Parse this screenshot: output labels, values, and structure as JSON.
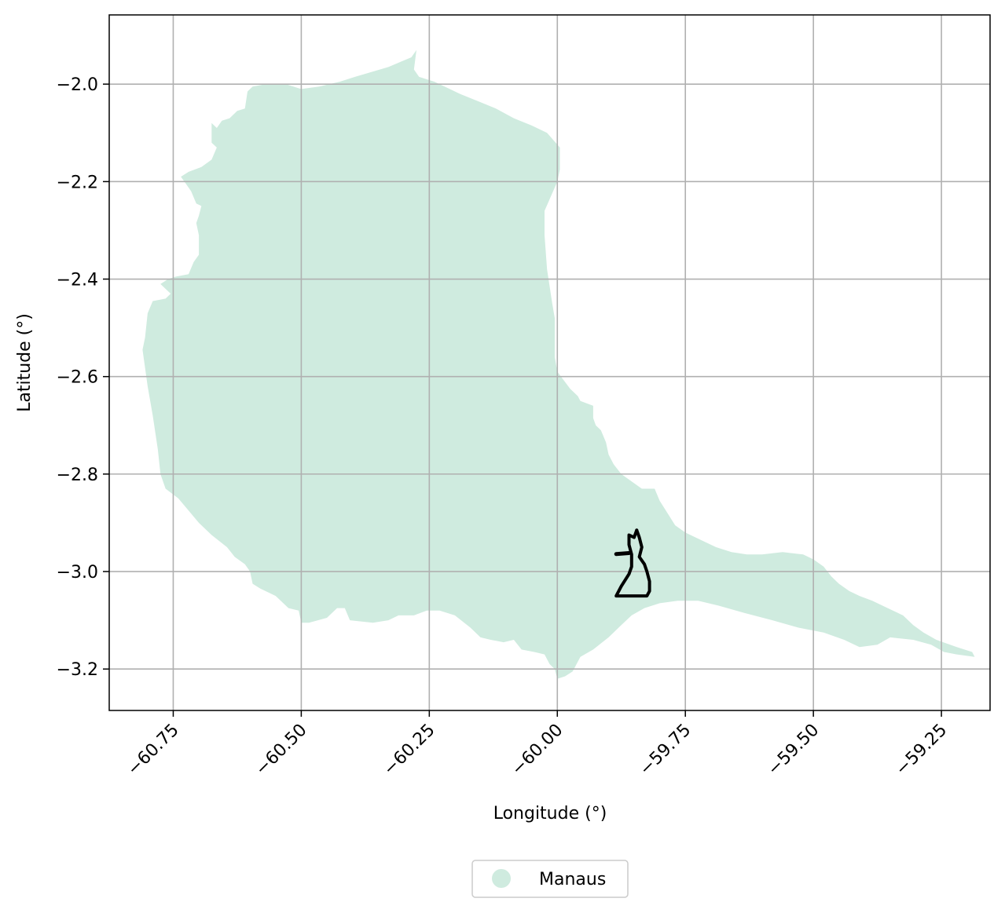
{
  "chart_data": {
    "type": "map",
    "xlabel": "Longitude (°)",
    "ylabel": "Latitude (°)",
    "xlim": [
      -60.875,
      -59.155
    ],
    "ylim": [
      -3.285,
      -1.858
    ],
    "x_ticks": [
      -60.75,
      -60.5,
      -60.25,
      -60.0,
      -59.75,
      -59.5,
      -59.25
    ],
    "x_tick_labels": [
      "−60.75",
      "−60.50",
      "−60.25",
      "−60.00",
      "−59.75",
      "−59.50",
      "−59.25"
    ],
    "y_ticks": [
      -2.0,
      -2.2,
      -2.4,
      -2.6,
      -2.8,
      -3.0,
      -3.2
    ],
    "y_tick_labels": [
      "−2.0",
      "−2.2",
      "−2.4",
      "−2.6",
      "−2.8",
      "−3.0",
      "−3.2"
    ],
    "grid": true,
    "legend": {
      "placement": "bottom-center",
      "entries": [
        {
          "label": "Manaus",
          "color": "#cfebdf"
        }
      ]
    },
    "region_fill": "#cfebdf",
    "outline_color": "#000000",
    "region_polygon": [
      [
        -60.285,
        -1.945
      ],
      [
        -60.33,
        -1.965
      ],
      [
        -60.395,
        -1.985
      ],
      [
        -60.425,
        -1.995
      ],
      [
        -60.465,
        -2.005
      ],
      [
        -60.5,
        -2.01
      ],
      [
        -60.53,
        -2.0
      ],
      [
        -60.57,
        -2.0
      ],
      [
        -60.595,
        -2.005
      ],
      [
        -60.605,
        -2.015
      ],
      [
        -60.61,
        -2.05
      ],
      [
        -60.625,
        -2.055
      ],
      [
        -60.64,
        -2.07
      ],
      [
        -60.655,
        -2.075
      ],
      [
        -60.665,
        -2.09
      ],
      [
        -60.675,
        -2.08
      ],
      [
        -60.675,
        -2.12
      ],
      [
        -60.665,
        -2.13
      ],
      [
        -60.675,
        -2.155
      ],
      [
        -60.695,
        -2.17
      ],
      [
        -60.72,
        -2.18
      ],
      [
        -60.735,
        -2.19
      ],
      [
        -60.725,
        -2.205
      ],
      [
        -60.715,
        -2.22
      ],
      [
        -60.705,
        -2.245
      ],
      [
        -60.695,
        -2.25
      ],
      [
        -60.7,
        -2.27
      ],
      [
        -60.705,
        -2.285
      ],
      [
        -60.7,
        -2.31
      ],
      [
        -60.7,
        -2.33
      ],
      [
        -60.7,
        -2.35
      ],
      [
        -60.71,
        -2.365
      ],
      [
        -60.72,
        -2.39
      ],
      [
        -60.745,
        -2.395
      ],
      [
        -60.76,
        -2.4
      ],
      [
        -60.775,
        -2.41
      ],
      [
        -60.755,
        -2.43
      ],
      [
        -60.765,
        -2.44
      ],
      [
        -60.79,
        -2.445
      ],
      [
        -60.8,
        -2.47
      ],
      [
        -60.805,
        -2.52
      ],
      [
        -60.81,
        -2.545
      ],
      [
        -60.8,
        -2.62
      ],
      [
        -60.79,
        -2.68
      ],
      [
        -60.78,
        -2.75
      ],
      [
        -60.775,
        -2.8
      ],
      [
        -60.765,
        -2.83
      ],
      [
        -60.74,
        -2.85
      ],
      [
        -60.72,
        -2.875
      ],
      [
        -60.7,
        -2.9
      ],
      [
        -60.675,
        -2.925
      ],
      [
        -60.645,
        -2.95
      ],
      [
        -60.63,
        -2.97
      ],
      [
        -60.61,
        -2.985
      ],
      [
        -60.6,
        -3.0
      ],
      [
        -60.595,
        -3.025
      ],
      [
        -60.58,
        -3.035
      ],
      [
        -60.55,
        -3.05
      ],
      [
        -60.525,
        -3.075
      ],
      [
        -60.505,
        -3.08
      ],
      [
        -60.5,
        -3.105
      ],
      [
        -60.485,
        -3.105
      ],
      [
        -60.45,
        -3.095
      ],
      [
        -60.43,
        -3.075
      ],
      [
        -60.415,
        -3.075
      ],
      [
        -60.405,
        -3.1
      ],
      [
        -60.36,
        -3.105
      ],
      [
        -60.33,
        -3.1
      ],
      [
        -60.31,
        -3.09
      ],
      [
        -60.28,
        -3.09
      ],
      [
        -60.255,
        -3.08
      ],
      [
        -60.23,
        -3.08
      ],
      [
        -60.2,
        -3.09
      ],
      [
        -60.17,
        -3.115
      ],
      [
        -60.15,
        -3.135
      ],
      [
        -60.13,
        -3.14
      ],
      [
        -60.105,
        -3.145
      ],
      [
        -60.085,
        -3.14
      ],
      [
        -60.07,
        -3.16
      ],
      [
        -60.045,
        -3.165
      ],
      [
        -60.025,
        -3.17
      ],
      [
        -60.015,
        -3.19
      ],
      [
        -60.005,
        -3.2
      ],
      [
        -60.0,
        -3.22
      ],
      [
        -59.985,
        -3.215
      ],
      [
        -59.97,
        -3.205
      ],
      [
        -59.955,
        -3.175
      ],
      [
        -59.93,
        -3.16
      ],
      [
        -59.9,
        -3.135
      ],
      [
        -59.875,
        -3.11
      ],
      [
        -59.855,
        -3.09
      ],
      [
        -59.83,
        -3.075
      ],
      [
        -59.8,
        -3.065
      ],
      [
        -59.765,
        -3.06
      ],
      [
        -59.725,
        -3.06
      ],
      [
        -59.685,
        -3.07
      ],
      [
        -59.635,
        -3.085
      ],
      [
        -59.58,
        -3.1
      ],
      [
        -59.53,
        -3.115
      ],
      [
        -59.48,
        -3.125
      ],
      [
        -59.44,
        -3.14
      ],
      [
        -59.41,
        -3.155
      ],
      [
        -59.375,
        -3.15
      ],
      [
        -59.35,
        -3.135
      ],
      [
        -59.305,
        -3.14
      ],
      [
        -59.27,
        -3.15
      ],
      [
        -59.245,
        -3.165
      ],
      [
        -59.22,
        -3.17
      ],
      [
        -59.185,
        -3.175
      ],
      [
        -59.19,
        -3.165
      ],
      [
        -59.22,
        -3.155
      ],
      [
        -59.26,
        -3.14
      ],
      [
        -59.285,
        -3.125
      ],
      [
        -59.305,
        -3.11
      ],
      [
        -59.325,
        -3.09
      ],
      [
        -59.355,
        -3.075
      ],
      [
        -59.385,
        -3.06
      ],
      [
        -59.41,
        -3.05
      ],
      [
        -59.43,
        -3.04
      ],
      [
        -59.45,
        -3.025
      ],
      [
        -59.465,
        -3.01
      ],
      [
        -59.48,
        -2.99
      ],
      [
        -59.5,
        -2.975
      ],
      [
        -59.52,
        -2.965
      ],
      [
        -59.56,
        -2.96
      ],
      [
        -59.6,
        -2.965
      ],
      [
        -59.63,
        -2.965
      ],
      [
        -59.66,
        -2.96
      ],
      [
        -59.69,
        -2.95
      ],
      [
        -59.72,
        -2.935
      ],
      [
        -59.75,
        -2.92
      ],
      [
        -59.77,
        -2.905
      ],
      [
        -59.785,
        -2.88
      ],
      [
        -59.8,
        -2.855
      ],
      [
        -59.81,
        -2.83
      ],
      [
        -59.835,
        -2.83
      ],
      [
        -59.855,
        -2.815
      ],
      [
        -59.875,
        -2.8
      ],
      [
        -59.89,
        -2.78
      ],
      [
        -59.9,
        -2.76
      ],
      [
        -59.905,
        -2.735
      ],
      [
        -59.915,
        -2.71
      ],
      [
        -59.925,
        -2.7
      ],
      [
        -59.93,
        -2.685
      ],
      [
        -59.93,
        -2.66
      ],
      [
        -59.955,
        -2.65
      ],
      [
        -59.96,
        -2.64
      ],
      [
        -59.975,
        -2.625
      ],
      [
        -60.0,
        -2.59
      ],
      [
        -60.005,
        -2.56
      ],
      [
        -60.005,
        -2.48
      ],
      [
        -60.01,
        -2.45
      ],
      [
        -60.02,
        -2.38
      ],
      [
        -60.025,
        -2.31
      ],
      [
        -60.025,
        -2.26
      ],
      [
        -60.0,
        -2.2
      ],
      [
        -59.995,
        -2.175
      ],
      [
        -59.995,
        -2.13
      ],
      [
        -60.02,
        -2.1
      ],
      [
        -60.05,
        -2.085
      ],
      [
        -60.085,
        -2.07
      ],
      [
        -60.12,
        -2.05
      ],
      [
        -60.155,
        -2.035
      ],
      [
        -60.19,
        -2.02
      ],
      [
        -60.21,
        -2.01
      ],
      [
        -60.24,
        -1.995
      ],
      [
        -60.27,
        -1.985
      ],
      [
        -60.28,
        -1.97
      ],
      [
        -60.275,
        -1.93
      ]
    ],
    "outline_polyline": [
      [
        -59.845,
        -2.915
      ],
      [
        -59.84,
        -2.93
      ],
      [
        -59.835,
        -2.95
      ],
      [
        -59.84,
        -2.97
      ],
      [
        -59.83,
        -2.985
      ],
      [
        -59.825,
        -3.0
      ],
      [
        -59.82,
        -3.02
      ],
      [
        -59.82,
        -3.04
      ],
      [
        -59.825,
        -3.05
      ],
      [
        -59.845,
        -3.05
      ],
      [
        -59.865,
        -3.05
      ],
      [
        -59.885,
        -3.05
      ],
      [
        -59.875,
        -3.03
      ],
      [
        -59.86,
        -3.005
      ],
      [
        -59.855,
        -2.99
      ],
      [
        -59.855,
        -2.965
      ],
      [
        -59.86,
        -2.945
      ],
      [
        -59.86,
        -2.925
      ],
      [
        -59.85,
        -2.93
      ],
      [
        -59.845,
        -2.915
      ]
    ],
    "outline_branch": [
      [
        -59.86,
        -2.962
      ],
      [
        -59.885,
        -2.964
      ]
    ]
  }
}
